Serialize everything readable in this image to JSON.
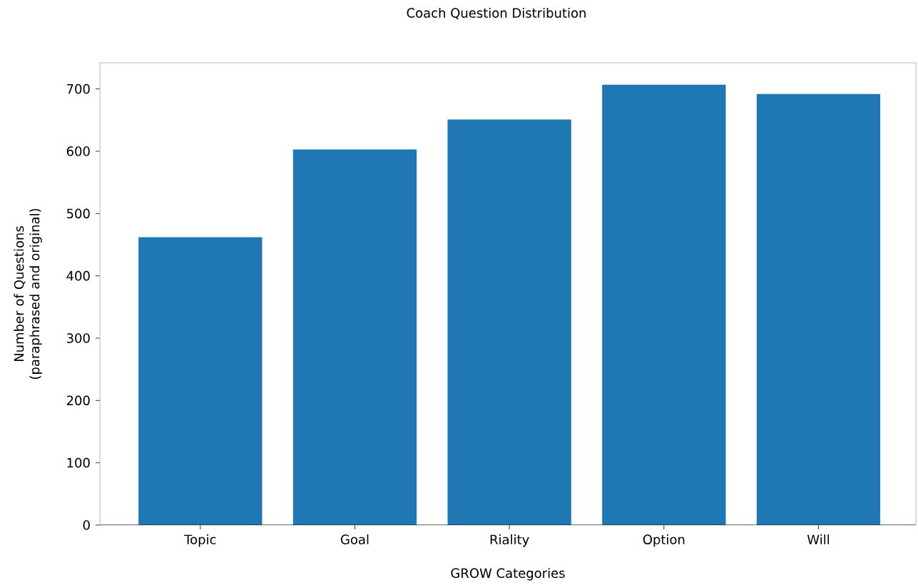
{
  "chart_data": {
    "type": "bar",
    "title": "Coach Question Distribution",
    "xlabel": "GROW Categories",
    "ylabel": "Number of Questions (paraphrased and original)",
    "categories": [
      "Topic",
      "Goal",
      "Riality",
      "Option",
      "Will"
    ],
    "values": [
      462,
      603,
      651,
      707,
      692
    ],
    "color": "#1f77b4",
    "ylim": [
      0,
      742
    ],
    "yticks": [
      0,
      100,
      200,
      300,
      400,
      500,
      600,
      700
    ],
    "grid": false
  }
}
